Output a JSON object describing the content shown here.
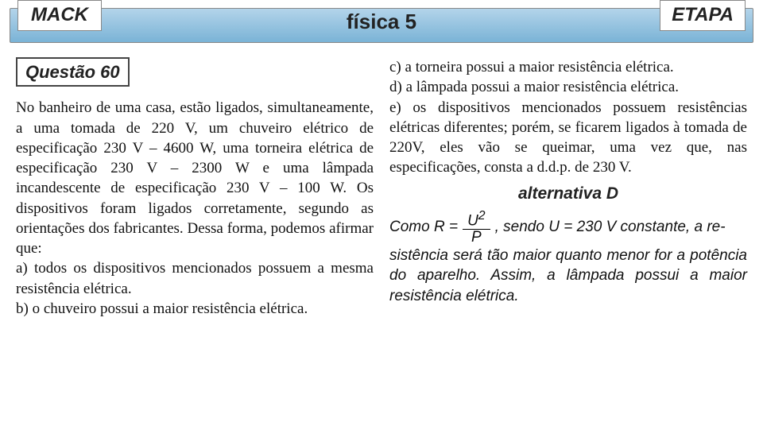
{
  "header": {
    "left": "MACK",
    "center_text": "física",
    "center_num": "5",
    "right": "ETAPA"
  },
  "question": {
    "label": "Questão 60",
    "body": "No banheiro de uma casa, estão ligados, simultaneamente, a uma tomada de 220 V, um chuveiro elétrico de especificação 230 V – 4600 W, uma torneira elétrica de especificação 230 V – 2300 W e uma lâmpada incandescente de especificação 230 V – 100 W. Os dispositivos foram ligados corretamente, segundo as orientações dos fabricantes. Dessa forma, podemos afirmar que:",
    "opt_a": "a) todos os dispositivos mencionados possuem a mesma resistência elétrica.",
    "opt_b": "b) o chuveiro possui a maior resistência elétrica.",
    "opt_c": "c) a torneira possui a maior resistência elétrica.",
    "opt_d": "d) a lâmpada possui a maior resistência elétrica.",
    "opt_e": "e) os dispositivos mencionados possuem resistências elétricas diferentes; porém, se ficarem ligados à tomada de 220V, eles vão se queimar, uma vez que, nas especificações, consta a d.d.p. de 230 V."
  },
  "answer": {
    "label": "alternativa D",
    "s1a": "Como R =",
    "frac_num": "U",
    "frac_exp": "2",
    "frac_den": "P",
    "s1b": ", sendo U = 230 V constante, a re-",
    "s2": "sistência será tão maior quanto menor for a potência do aparelho. Assim, a lâmpada possui a maior resistência elétrica."
  },
  "colors": {
    "header_grad_top": "#b3d4ea",
    "header_grad_bottom": "#7ab3d6",
    "border": "#888888",
    "text": "#111111"
  }
}
